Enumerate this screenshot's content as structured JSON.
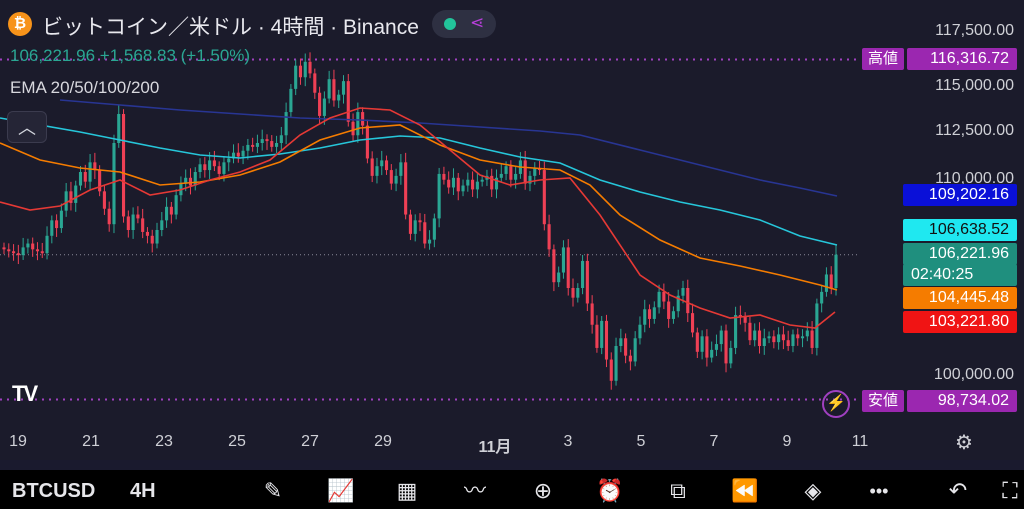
{
  "header": {
    "coin_icon": "₿",
    "title": "ビットコイン／米ドル · 4時間 · Binance",
    "price_line": "106,221.96 +1,568.83 (+1.50%)",
    "ema_label": "EMA 20/50/100/200",
    "share_icon": "share-icon",
    "status_color": "#22c39a"
  },
  "collapse_icon": "︿",
  "price_axis": [
    "117,500.00",
    "115,000.00",
    "112,500.00",
    "110,000.00",
    "100,000.00"
  ],
  "badges": {
    "high_label": "高値",
    "high_value": "116,316.72",
    "ema200": "109,202.16",
    "ema20": "106,638.52",
    "last_price": "106,221.96",
    "countdown": "02:40:25",
    "ema50": "104,445.48",
    "ema100": "103,221.80",
    "low_label": "安値",
    "low_value": "98,734.02"
  },
  "time_axis": [
    "19",
    "21",
    "23",
    "25",
    "27",
    "29",
    "11月",
    "3",
    "5",
    "7",
    "9",
    "11"
  ],
  "logo": "TV",
  "bottom": {
    "symbol": "BTCUSD",
    "interval": "4H",
    "tools": [
      "pencil-icon",
      "indicators-icon",
      "grid-icon",
      "drawing-icon",
      "add-icon",
      "alarm-icon",
      "candles-icon",
      "replay-icon",
      "layers-icon",
      "more-icon",
      "undo-icon",
      "fullscreen-icon"
    ],
    "tool_glyphs": [
      "✎",
      "📈",
      "▦",
      "〰",
      "⊕",
      "⏰",
      "⧉",
      "⏪",
      "◈",
      "•••",
      "↶",
      "⛶"
    ]
  },
  "chart_data": {
    "type": "candlestick",
    "ylim": [
      98000,
      118500
    ],
    "high": 116316.72,
    "low": 98734.02,
    "last": 106221.96,
    "ema_colors": {
      "ema20": "#e53935",
      "ema50": "#f57c00",
      "ema100": "#26c6da",
      "ema200": "#283593"
    },
    "up_color": "#2aa693",
    "down_color": "#ef4055",
    "closes": [
      106500,
      106400,
      106300,
      106200,
      106600,
      106800,
      106500,
      106400,
      106300,
      107200,
      108000,
      107600,
      108500,
      109500,
      108900,
      109800,
      110500,
      110000,
      111000,
      110600,
      109500,
      108600,
      107800,
      112000,
      113500,
      108200,
      107500,
      108300,
      108100,
      107400,
      107200,
      106800,
      107500,
      108000,
      108700,
      108300,
      109300,
      109900,
      110200,
      109800,
      110500,
      110900,
      110600,
      111100,
      110800,
      110400,
      111000,
      111200,
      111500,
      111300,
      111600,
      111900,
      111800,
      112000,
      112200,
      112100,
      111800,
      112000,
      112400,
      113600,
      114800,
      116000,
      115400,
      116200,
      115600,
      114600,
      113400,
      114300,
      115300,
      114200,
      114500,
      115200,
      113100,
      112400,
      113600,
      112900,
      111200,
      110300,
      110800,
      111100,
      110600,
      109900,
      110300,
      111000,
      108300,
      107300,
      108000,
      107900,
      106800,
      107000,
      108100,
      110400,
      110100,
      109700,
      110200,
      109500,
      109800,
      110100,
      109600,
      110000,
      110100,
      110300,
      109600,
      110200,
      110400,
      110800,
      110100,
      110400,
      111100,
      109900,
      110300,
      110700,
      110600,
      107800,
      106500,
      104800,
      105300,
      106600,
      104500,
      104000,
      104500,
      105900,
      103700,
      102600,
      101400,
      102800,
      100800,
      99700,
      101500,
      101900,
      101000,
      100700,
      101900,
      102600,
      103400,
      102900,
      103500,
      104300,
      103800,
      102900,
      103300,
      104100,
      104500,
      103200,
      102200,
      101200,
      102000,
      100900,
      101300,
      101600,
      102300,
      100600,
      101400,
      103100,
      103000,
      102700,
      101800,
      102300,
      101500,
      101900,
      102000,
      101700,
      102100,
      101800,
      101500,
      102100,
      101900,
      102000,
      102300,
      101400,
      103700,
      104300,
      105200,
      104500,
      106222
    ],
    "ema20_path": [
      [
        0,
        202
      ],
      [
        30,
        210
      ],
      [
        60,
        206
      ],
      [
        90,
        190
      ],
      [
        120,
        180
      ],
      [
        150,
        195
      ],
      [
        180,
        190
      ],
      [
        210,
        180
      ],
      [
        240,
        172
      ],
      [
        270,
        160
      ],
      [
        300,
        135
      ],
      [
        330,
        118
      ],
      [
        360,
        108
      ],
      [
        390,
        110
      ],
      [
        420,
        125
      ],
      [
        450,
        150
      ],
      [
        480,
        175
      ],
      [
        510,
        185
      ],
      [
        540,
        180
      ],
      [
        570,
        178
      ],
      [
        600,
        215
      ],
      [
        620,
        245
      ],
      [
        640,
        275
      ],
      [
        670,
        295
      ],
      [
        700,
        308
      ],
      [
        730,
        318
      ],
      [
        760,
        315
      ],
      [
        790,
        325
      ],
      [
        815,
        328
      ],
      [
        835,
        312
      ]
    ],
    "ema50_path": [
      [
        0,
        143
      ],
      [
        40,
        160
      ],
      [
        80,
        168
      ],
      [
        120,
        172
      ],
      [
        160,
        185
      ],
      [
        200,
        182
      ],
      [
        240,
        175
      ],
      [
        280,
        162
      ],
      [
        320,
        140
      ],
      [
        360,
        128
      ],
      [
        400,
        125
      ],
      [
        440,
        145
      ],
      [
        480,
        160
      ],
      [
        520,
        167
      ],
      [
        560,
        170
      ],
      [
        590,
        185
      ],
      [
        620,
        215
      ],
      [
        660,
        240
      ],
      [
        700,
        258
      ],
      [
        740,
        266
      ],
      [
        780,
        275
      ],
      [
        820,
        285
      ],
      [
        837,
        290
      ]
    ],
    "ema100_path": [
      [
        0,
        118
      ],
      [
        40,
        125
      ],
      [
        80,
        132
      ],
      [
        120,
        140
      ],
      [
        160,
        148
      ],
      [
        200,
        155
      ],
      [
        240,
        158
      ],
      [
        280,
        154
      ],
      [
        320,
        148
      ],
      [
        360,
        140
      ],
      [
        400,
        136
      ],
      [
        440,
        138
      ],
      [
        480,
        148
      ],
      [
        520,
        157
      ],
      [
        560,
        163
      ],
      [
        600,
        180
      ],
      [
        640,
        192
      ],
      [
        680,
        202
      ],
      [
        720,
        210
      ],
      [
        760,
        220
      ],
      [
        800,
        236
      ],
      [
        837,
        245
      ]
    ],
    "ema200_path": [
      [
        60,
        100
      ],
      [
        120,
        105
      ],
      [
        180,
        110
      ],
      [
        240,
        114
      ],
      [
        300,
        118
      ],
      [
        360,
        120
      ],
      [
        420,
        123
      ],
      [
        480,
        127
      ],
      [
        540,
        131
      ],
      [
        580,
        135
      ],
      [
        640,
        150
      ],
      [
        700,
        165
      ],
      [
        760,
        180
      ],
      [
        800,
        188
      ],
      [
        837,
        196
      ]
    ]
  }
}
